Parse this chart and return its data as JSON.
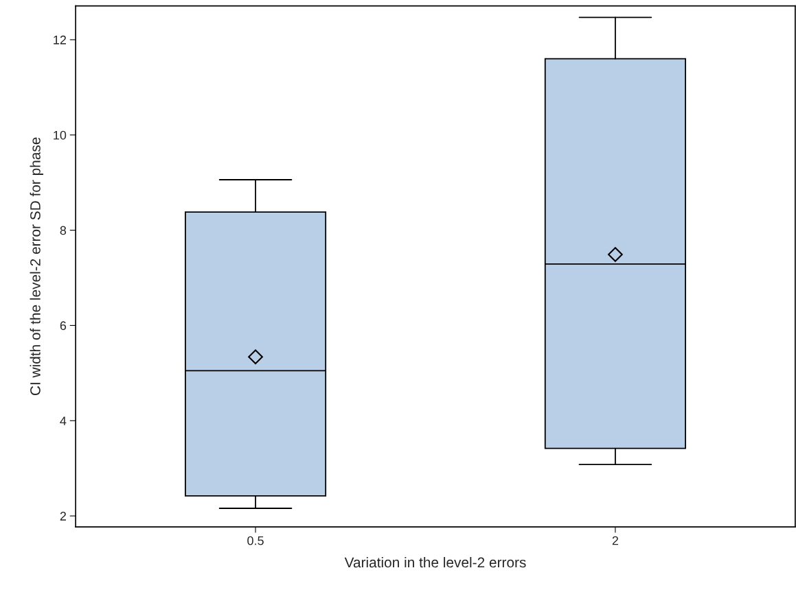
{
  "chart_data": {
    "type": "box",
    "xlabel": "Variation in the level-2 errors",
    "ylabel": "CI width of the level-2 error SD for phase",
    "categories": [
      "0.5",
      "2"
    ],
    "series": [
      {
        "color": "#b9cfe7",
        "boxes": [
          {
            "low": 2.16,
            "q1": 2.42,
            "median": 5.05,
            "q3": 8.38,
            "high": 9.06,
            "mean": 5.34
          },
          {
            "low": 3.08,
            "q1": 3.42,
            "median": 7.29,
            "q3": 11.6,
            "high": 12.47,
            "mean": 7.49
          }
        ]
      }
    ],
    "ylim": [
      1.77,
      12.71
    ],
    "yticks": [
      2,
      4,
      6,
      8,
      10,
      12
    ],
    "grid": false,
    "marker": "diamond"
  }
}
